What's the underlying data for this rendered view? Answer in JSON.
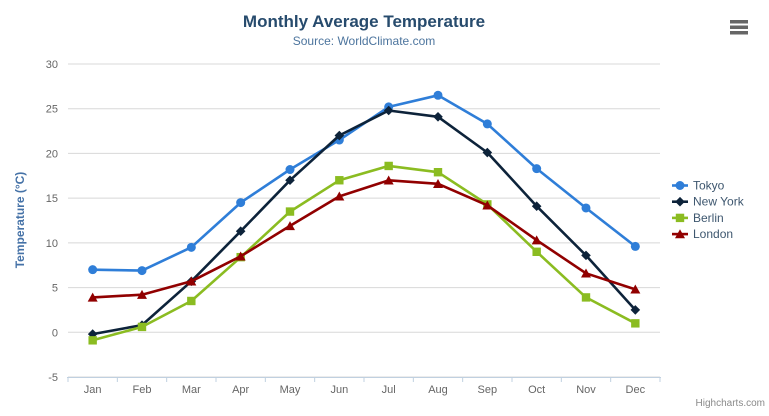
{
  "chart": {
    "credit": "Highcharts.com",
    "menu_icon": "hamburger-icon",
    "colors": {
      "title": "#274b6d",
      "subtitle": "#4d759e",
      "axis_title": "#4572a7",
      "axis_labels": "#666666",
      "gridline": "#d8d8d8",
      "axis_line": "#c0d0e0",
      "legend_text": "#3e576f",
      "menu_icon": "#666666",
      "credits": "#8a8a8a"
    }
  },
  "chart_data": {
    "type": "line",
    "title": "Monthly Average Temperature",
    "subtitle": "Source: WorldClimate.com",
    "xlabel": "",
    "ylabel": "Temperature (°C)",
    "ylim": [
      -5,
      30
    ],
    "ytick_interval": 5,
    "yticks": [
      -5,
      0,
      5,
      10,
      15,
      20,
      25,
      30
    ],
    "grid": true,
    "legend_position": "right",
    "categories": [
      "Jan",
      "Feb",
      "Mar",
      "Apr",
      "May",
      "Jun",
      "Jul",
      "Aug",
      "Sep",
      "Oct",
      "Nov",
      "Dec"
    ],
    "series": [
      {
        "name": "Tokyo",
        "color": "#2f7ed8",
        "marker": "circle",
        "values": [
          7.0,
          6.9,
          9.5,
          14.5,
          18.2,
          21.5,
          25.2,
          26.5,
          23.3,
          18.3,
          13.9,
          9.6
        ]
      },
      {
        "name": "New York",
        "color": "#0d233a",
        "marker": "diamond",
        "values": [
          -0.2,
          0.8,
          5.7,
          11.3,
          17.0,
          22.0,
          24.8,
          24.1,
          20.1,
          14.1,
          8.6,
          2.5
        ]
      },
      {
        "name": "Berlin",
        "color": "#8bbc21",
        "marker": "square",
        "values": [
          -0.9,
          0.6,
          3.5,
          8.4,
          13.5,
          17.0,
          18.6,
          17.9,
          14.3,
          9.0,
          3.9,
          1.0
        ]
      },
      {
        "name": "London",
        "color": "#910000",
        "marker": "triangle",
        "values": [
          3.9,
          4.2,
          5.7,
          8.5,
          11.9,
          15.2,
          17.0,
          16.6,
          14.2,
          10.3,
          6.6,
          4.8
        ]
      }
    ]
  }
}
